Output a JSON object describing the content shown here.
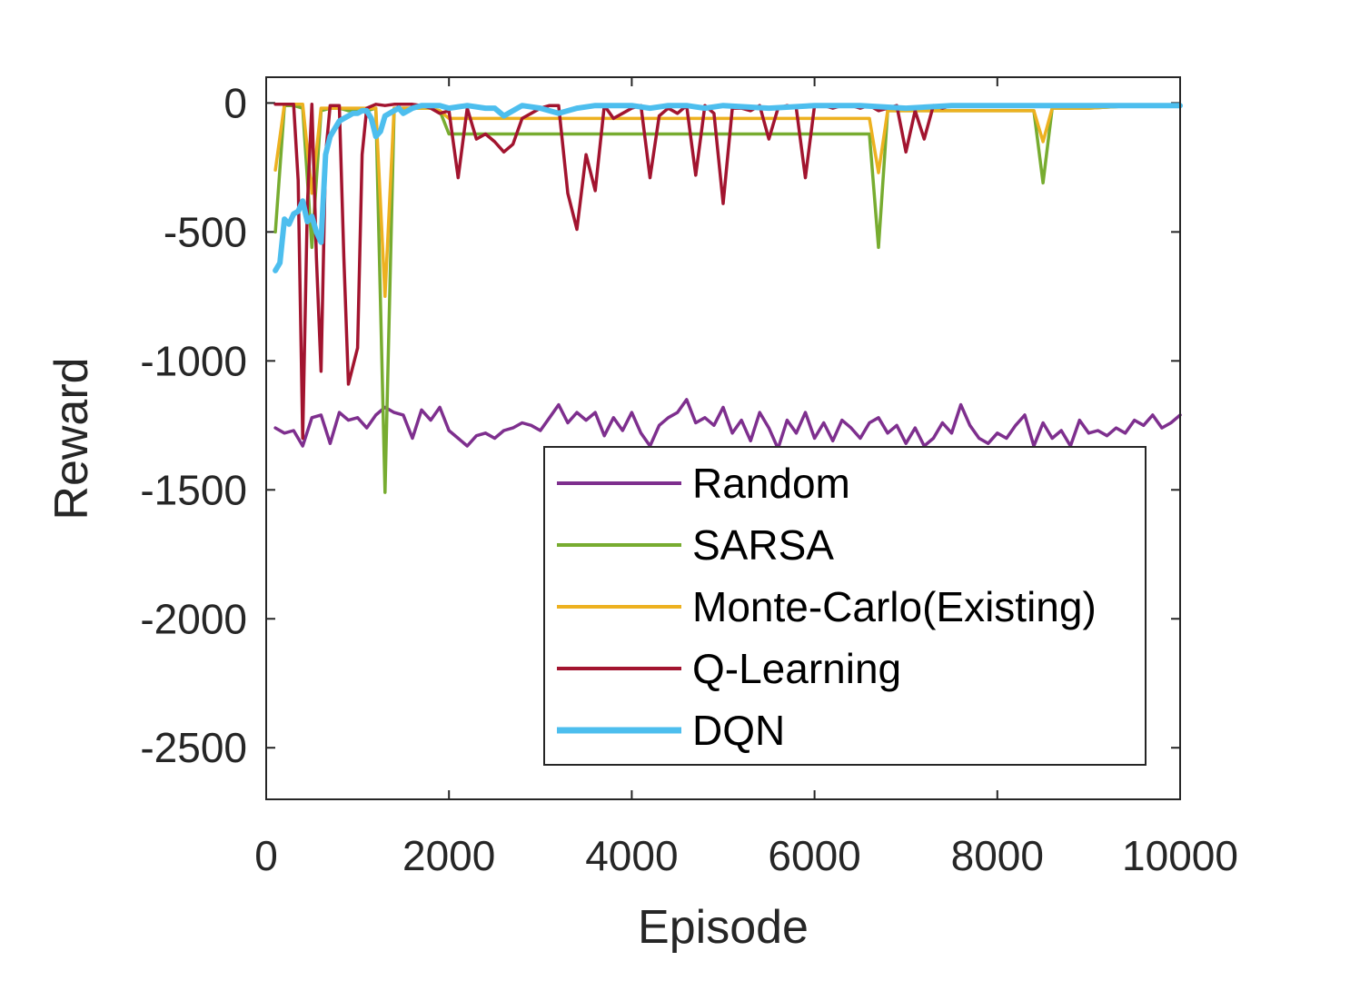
{
  "chart_data": {
    "type": "line",
    "title": "",
    "xlabel": "Episode",
    "ylabel": "Reward",
    "xlim": [
      0,
      10000
    ],
    "ylim": [
      -2700,
      100
    ],
    "xticks": [
      0,
      2000,
      4000,
      6000,
      8000,
      10000
    ],
    "yticks": [
      0,
      -500,
      -1000,
      -1500,
      -2000,
      -2500
    ],
    "grid": false,
    "legend_position": "bottom-right",
    "series": [
      {
        "name": "Random",
        "color": "#7E2F8E",
        "x": [
          100,
          200,
          300,
          400,
          500,
          600,
          700,
          800,
          900,
          1000,
          1100,
          1200,
          1300,
          1400,
          1500,
          1600,
          1700,
          1800,
          1900,
          2000,
          2100,
          2200,
          2300,
          2400,
          2500,
          2600,
          2700,
          2800,
          2900,
          3000,
          3100,
          3200,
          3300,
          3400,
          3500,
          3600,
          3700,
          3800,
          3900,
          4000,
          4100,
          4200,
          4300,
          4400,
          4500,
          4600,
          4700,
          4800,
          4900,
          5000,
          5100,
          5200,
          5300,
          5400,
          5500,
          5600,
          5700,
          5800,
          5900,
          6000,
          6100,
          6200,
          6300,
          6400,
          6500,
          6600,
          6700,
          6800,
          6900,
          7000,
          7100,
          7200,
          7300,
          7400,
          7500,
          7600,
          7700,
          7800,
          7900,
          8000,
          8100,
          8200,
          8300,
          8400,
          8500,
          8600,
          8700,
          8800,
          8900,
          9000,
          9100,
          9200,
          9300,
          9400,
          9500,
          9600,
          9700,
          9800,
          9900,
          10000
        ],
        "values": [
          -1260,
          -1280,
          -1270,
          -1330,
          -1220,
          -1210,
          -1320,
          -1200,
          -1230,
          -1220,
          -1260,
          -1210,
          -1180,
          -1200,
          -1210,
          -1300,
          -1190,
          -1230,
          -1180,
          -1270,
          -1300,
          -1330,
          -1290,
          -1280,
          -1300,
          -1270,
          -1260,
          -1240,
          -1250,
          -1270,
          -1220,
          -1170,
          -1240,
          -1200,
          -1230,
          -1200,
          -1290,
          -1220,
          -1270,
          -1200,
          -1280,
          -1330,
          -1250,
          -1220,
          -1200,
          -1150,
          -1240,
          -1220,
          -1250,
          -1180,
          -1280,
          -1230,
          -1310,
          -1200,
          -1260,
          -1340,
          -1230,
          -1280,
          -1200,
          -1300,
          -1240,
          -1310,
          -1230,
          -1260,
          -1300,
          -1240,
          -1220,
          -1280,
          -1250,
          -1320,
          -1260,
          -1330,
          -1300,
          -1240,
          -1280,
          -1170,
          -1250,
          -1300,
          -1320,
          -1280,
          -1300,
          -1250,
          -1210,
          -1330,
          -1240,
          -1300,
          -1270,
          -1330,
          -1230,
          -1280,
          -1270,
          -1290,
          -1260,
          -1280,
          -1230,
          -1250,
          -1210,
          -1260,
          -1240,
          -1210
        ]
      },
      {
        "name": "SARSA",
        "color": "#77AC30",
        "x": [
          100,
          200,
          300,
          400,
          500,
          600,
          700,
          800,
          900,
          1000,
          1100,
          1200,
          1300,
          1400,
          1500,
          1600,
          1700,
          1800,
          1900,
          2000,
          2100,
          2500,
          3000,
          3500,
          4000,
          4500,
          5000,
          5500,
          6000,
          6500,
          6600,
          6700,
          6800,
          6900,
          7000,
          7500,
          8000,
          8400,
          8500,
          8600,
          9000,
          9500,
          10000
        ],
        "values": [
          -500,
          -10,
          -10,
          -20,
          -560,
          -30,
          -20,
          -20,
          -30,
          -30,
          -30,
          -20,
          -1510,
          -30,
          -20,
          -20,
          -20,
          -20,
          -30,
          -120,
          -120,
          -120,
          -120,
          -120,
          -120,
          -120,
          -120,
          -120,
          -120,
          -120,
          -120,
          -560,
          -30,
          -30,
          -30,
          -30,
          -30,
          -30,
          -310,
          -20,
          -20,
          -10,
          -10
        ]
      },
      {
        "name": "Monte-Carlo(Existing)",
        "color": "#EDB120",
        "x": [
          100,
          200,
          300,
          400,
          500,
          600,
          700,
          800,
          900,
          1000,
          1100,
          1200,
          1300,
          1400,
          1500,
          1600,
          1700,
          1800,
          1900,
          2000,
          2100,
          2500,
          3000,
          3500,
          4000,
          4500,
          5000,
          5500,
          6000,
          6500,
          6600,
          6700,
          6800,
          6900,
          7000,
          7500,
          8000,
          8400,
          8500,
          8600,
          9000,
          9500,
          10000
        ],
        "values": [
          -260,
          -5,
          -5,
          -5,
          -350,
          -20,
          -20,
          -20,
          -20,
          -20,
          -20,
          -20,
          -750,
          -20,
          -20,
          -20,
          -20,
          -20,
          -30,
          -60,
          -60,
          -60,
          -60,
          -60,
          -60,
          -60,
          -60,
          -60,
          -60,
          -60,
          -60,
          -270,
          -30,
          -30,
          -30,
          -30,
          -30,
          -30,
          -150,
          -20,
          -20,
          -10,
          -10
        ]
      },
      {
        "name": "Q-Learning",
        "color": "#A2142F",
        "x": [
          100,
          200,
          300,
          350,
          400,
          450,
          500,
          550,
          600,
          650,
          700,
          800,
          850,
          900,
          1000,
          1050,
          1100,
          1200,
          1300,
          1400,
          1500,
          1600,
          1700,
          1800,
          1900,
          2000,
          2100,
          2200,
          2300,
          2400,
          2500,
          2600,
          2700,
          2800,
          2900,
          3000,
          3100,
          3200,
          3300,
          3400,
          3500,
          3600,
          3700,
          3800,
          3900,
          4000,
          4100,
          4200,
          4300,
          4400,
          4500,
          4600,
          4700,
          4800,
          4900,
          5000,
          5100,
          5200,
          5300,
          5400,
          5500,
          5600,
          5700,
          5800,
          5900,
          6000,
          6100,
          6200,
          6300,
          6400,
          6500,
          6600,
          6700,
          6800,
          6900,
          7000,
          7100,
          7200,
          7300,
          7400,
          7500,
          8000,
          8500,
          9000,
          9500,
          10000
        ],
        "values": [
          -5,
          -5,
          -5,
          -300,
          -1300,
          -400,
          -5,
          -600,
          -1040,
          -200,
          -10,
          -10,
          -600,
          -1090,
          -950,
          -200,
          -20,
          -5,
          -10,
          -5,
          -5,
          -5,
          -10,
          -20,
          -40,
          -30,
          -290,
          -20,
          -140,
          -120,
          -150,
          -190,
          -160,
          -60,
          -40,
          -20,
          -10,
          -10,
          -350,
          -490,
          -200,
          -340,
          -10,
          -60,
          -40,
          -20,
          -10,
          -290,
          -50,
          -20,
          -40,
          -10,
          -280,
          -10,
          -40,
          -390,
          -20,
          -20,
          -30,
          -10,
          -140,
          -20,
          -10,
          -20,
          -290,
          -10,
          -10,
          -20,
          -10,
          -10,
          -20,
          -10,
          -30,
          -20,
          -10,
          -190,
          -30,
          -140,
          -10,
          -20,
          -10,
          -10,
          -10,
          -10,
          -10,
          -10
        ]
      },
      {
        "name": "DQN",
        "color": "#4DBEEE",
        "x": [
          100,
          150,
          200,
          250,
          300,
          350,
          400,
          450,
          500,
          550,
          600,
          650,
          700,
          750,
          800,
          850,
          900,
          950,
          1000,
          1050,
          1100,
          1150,
          1200,
          1250,
          1300,
          1350,
          1400,
          1450,
          1500,
          1600,
          1700,
          1800,
          1900,
          2000,
          2200,
          2400,
          2500,
          2600,
          2800,
          3000,
          3200,
          3400,
          3600,
          3800,
          4000,
          4200,
          4400,
          4600,
          4800,
          5000,
          5500,
          6000,
          6500,
          7000,
          7500,
          8000,
          8500,
          9000,
          9500,
          10000
        ],
        "values": [
          -650,
          -620,
          -450,
          -470,
          -430,
          -420,
          -380,
          -460,
          -440,
          -500,
          -540,
          -200,
          -130,
          -100,
          -70,
          -60,
          -50,
          -40,
          -40,
          -30,
          -30,
          -60,
          -130,
          -110,
          -50,
          -40,
          -30,
          -20,
          -40,
          -20,
          -10,
          -10,
          -10,
          -20,
          -10,
          -20,
          -20,
          -50,
          -10,
          -20,
          -40,
          -20,
          -10,
          -10,
          -10,
          -20,
          -10,
          -10,
          -20,
          -10,
          -20,
          -10,
          -10,
          -20,
          -10,
          -10,
          -10,
          -10,
          -10,
          -10
        ]
      }
    ]
  }
}
